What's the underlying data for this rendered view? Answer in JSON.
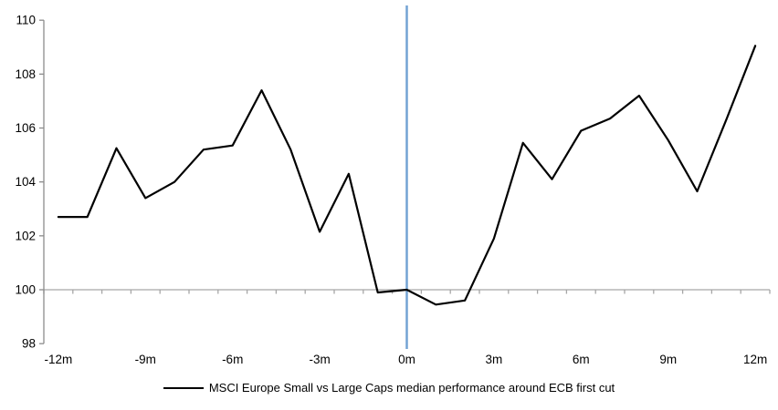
{
  "chart_data": {
    "type": "line",
    "title": "",
    "xlabel": "",
    "ylabel": "",
    "x_months": [
      -12,
      -11,
      -10,
      -9,
      -8,
      -7,
      -6,
      -5,
      -4,
      -3,
      -2,
      -1,
      0,
      1,
      2,
      3,
      4,
      5,
      6,
      7,
      8,
      9,
      10,
      11,
      12
    ],
    "categories": [
      "-12m",
      "-11m",
      "-10m",
      "-9m",
      "-8m",
      "-7m",
      "-6m",
      "-5m",
      "-4m",
      "-3m",
      "-2m",
      "-1m",
      "0m",
      "1m",
      "2m",
      "3m",
      "4m",
      "5m",
      "6m",
      "7m",
      "8m",
      "9m",
      "10m",
      "11m",
      "12m"
    ],
    "series": [
      {
        "name": "MSCI Europe Small vs Large Caps median performance around ECB first cut",
        "values": [
          102.7,
          102.7,
          105.25,
          103.4,
          104.0,
          105.2,
          105.35,
          107.4,
          105.2,
          102.15,
          104.3,
          99.9,
          100.0,
          99.45,
          99.6,
          101.9,
          105.45,
          104.1,
          105.9,
          106.35,
          107.2,
          105.55,
          103.65,
          106.3,
          109.05
        ]
      }
    ],
    "ylim": [
      98,
      110
    ],
    "y_ticks": [
      98,
      100,
      102,
      104,
      106,
      108,
      110
    ],
    "x_tick_labels": [
      "-12m",
      "-9m",
      "-6m",
      "-3m",
      "0m",
      "3m",
      "6m",
      "9m",
      "12m"
    ],
    "x_tick_months": [
      -12,
      -9,
      -6,
      -3,
      0,
      3,
      6,
      9,
      12
    ],
    "baseline_value": 100,
    "event_line_month": 0,
    "grid": "off",
    "legend_position": "bottom-center",
    "colors": {
      "series_line": "#000000",
      "event_line": "#74a3d4",
      "baseline": "#a6a6a6",
      "axis": "#8c8c8c",
      "label_text": "#000000"
    }
  },
  "legend": {
    "label": "MSCI Europe Small vs Large Caps median performance around ECB first cut"
  }
}
